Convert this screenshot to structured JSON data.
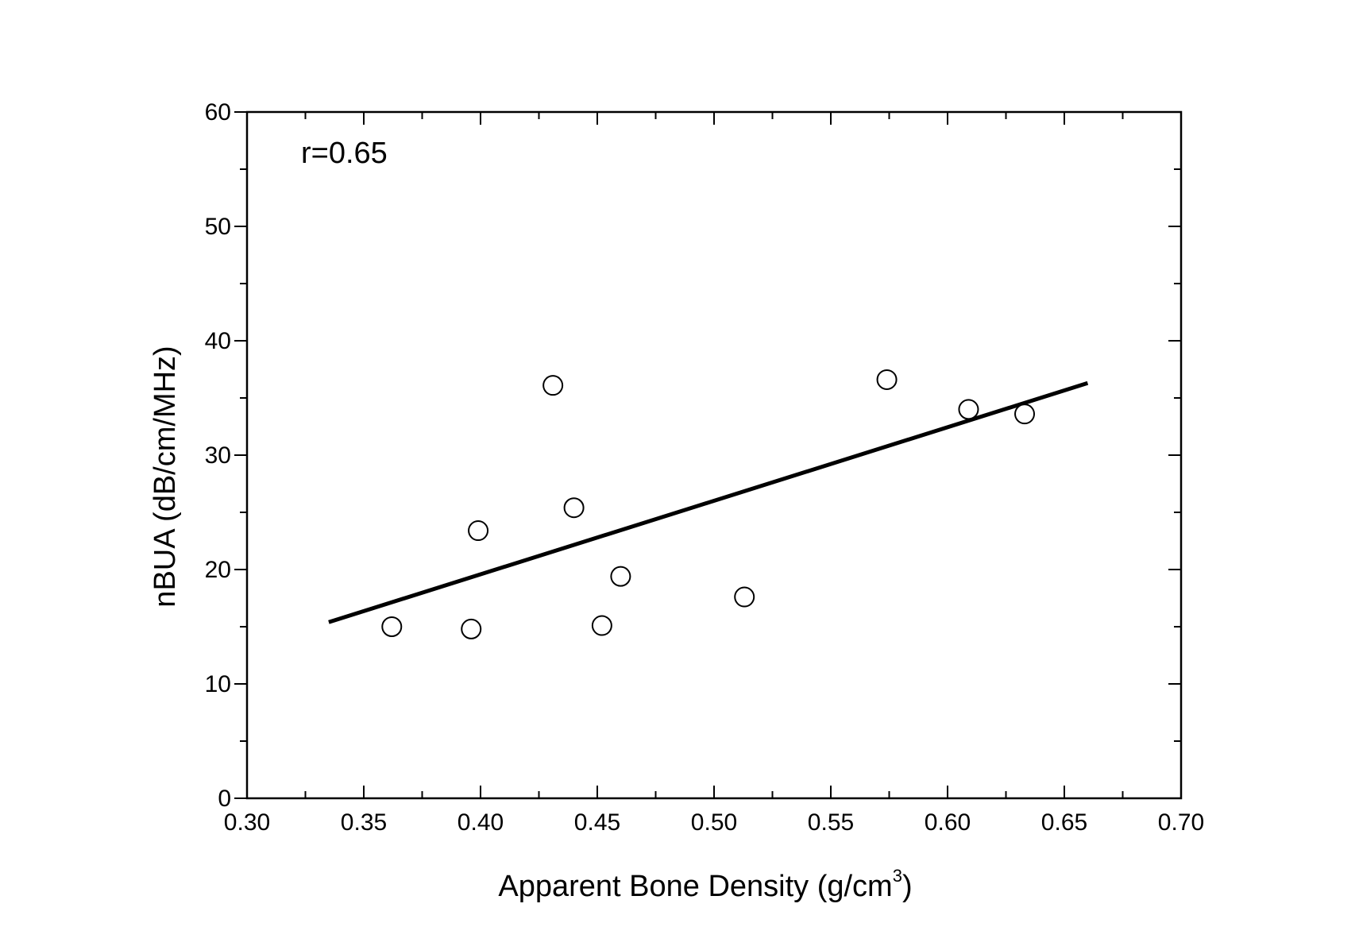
{
  "chart_data": {
    "type": "scatter",
    "title": "",
    "xlabel": "Apparent Bone Density (g/cm",
    "xlabel_superscript": "3",
    "xlabel_suffix": ")",
    "ylabel": "nBUA (dB/cm/MHz)",
    "xlim": [
      0.3,
      0.7
    ],
    "ylim": [
      0,
      60
    ],
    "xticks": [
      0.3,
      0.35,
      0.4,
      0.45,
      0.5,
      0.55,
      0.6,
      0.65,
      0.7
    ],
    "xtick_labels": [
      "0.30",
      "0.35",
      "0.40",
      "0.45",
      "0.50",
      "0.55",
      "0.60",
      "0.65",
      "0.70"
    ],
    "yticks": [
      0,
      10,
      20,
      30,
      40,
      50,
      60
    ],
    "ytick_labels": [
      "0",
      "10",
      "20",
      "30",
      "40",
      "50",
      "60"
    ],
    "grid": false,
    "annotation": "r=0.65",
    "points": [
      {
        "x": 0.362,
        "y": 15.0
      },
      {
        "x": 0.396,
        "y": 14.8
      },
      {
        "x": 0.399,
        "y": 23.4
      },
      {
        "x": 0.431,
        "y": 36.1
      },
      {
        "x": 0.44,
        "y": 25.4
      },
      {
        "x": 0.452,
        "y": 15.1
      },
      {
        "x": 0.46,
        "y": 19.4
      },
      {
        "x": 0.513,
        "y": 17.6
      },
      {
        "x": 0.574,
        "y": 36.6
      },
      {
        "x": 0.609,
        "y": 34.0
      },
      {
        "x": 0.633,
        "y": 33.6
      }
    ],
    "fit_line": {
      "x": [
        0.335,
        0.66
      ],
      "y": [
        15.4,
        36.3
      ]
    }
  }
}
